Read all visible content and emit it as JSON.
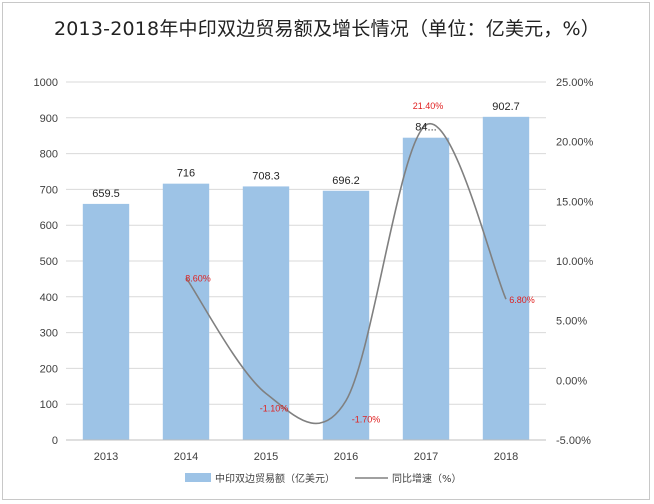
{
  "chart_data": {
    "type": "bar",
    "title": "2013-2018年中印双边贸易额及增长情况（单位：亿美元，%）",
    "categories": [
      "2013",
      "2014",
      "2015",
      "2016",
      "2017",
      "2018"
    ],
    "series": [
      {
        "name": "中印双边贸易额（亿美元）",
        "type": "bar",
        "axis": "left",
        "values": [
          659.5,
          716,
          708.3,
          696.2,
          844.4,
          902.7
        ],
        "labels": [
          "659.5",
          "716",
          "708.3",
          "696.2",
          "84...",
          "902.7"
        ],
        "color": "#9dc3e6"
      },
      {
        "name": "同比增速（%）",
        "type": "line",
        "axis": "right",
        "values": [
          null,
          8.6,
          -1.1,
          -1.7,
          21.4,
          6.8
        ],
        "labels": [
          "",
          "8.60%",
          "-1.10%",
          "-1.70%",
          "21.40%",
          "6.80%"
        ],
        "color": "#808080"
      }
    ],
    "ylim_left": [
      0,
      1000
    ],
    "left_ticks": [
      "0",
      "100",
      "200",
      "300",
      "400",
      "500",
      "600",
      "700",
      "800",
      "900",
      "1000"
    ],
    "ylim_right": [
      -5,
      25
    ],
    "right_ticks": [
      "-5.00%",
      "0.00%",
      "5.00%",
      "10.00%",
      "15.00%",
      "20.00%",
      "25.00%"
    ],
    "grid": true,
    "legend_position": "bottom",
    "label_color": "#e02020"
  }
}
